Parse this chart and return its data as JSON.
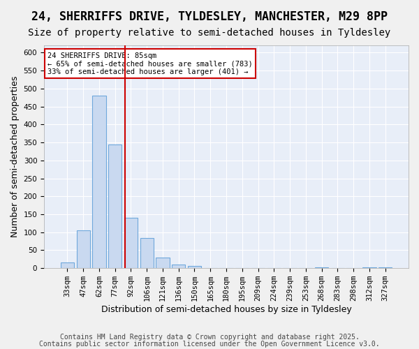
{
  "title1": "24, SHERRIFFS DRIVE, TYLDESLEY, MANCHESTER, M29 8PP",
  "title2": "Size of property relative to semi-detached houses in Tyldesley",
  "xlabel": "Distribution of semi-detached houses by size in Tyldesley",
  "ylabel": "Number of semi-detached properties",
  "categories": [
    "33sqm",
    "47sqm",
    "62sqm",
    "77sqm",
    "92sqm",
    "106sqm",
    "121sqm",
    "136sqm",
    "150sqm",
    "165sqm",
    "180sqm",
    "195sqm",
    "209sqm",
    "224sqm",
    "239sqm",
    "253sqm",
    "268sqm",
    "283sqm",
    "298sqm",
    "312sqm",
    "327sqm"
  ],
  "values": [
    15,
    105,
    480,
    345,
    140,
    83,
    30,
    11,
    6,
    1,
    0,
    0,
    0,
    0,
    0,
    0,
    2,
    0,
    0,
    2,
    3
  ],
  "bar_color": "#c9d9f0",
  "bar_edge_color": "#6fa8dc",
  "vline_x": 4,
  "vline_color": "#cc0000",
  "annotation_title": "24 SHERRIFFS DRIVE: 85sqm",
  "annotation_line1": "← 65% of semi-detached houses are smaller (783)",
  "annotation_line2": "33% of semi-detached houses are larger (401) →",
  "annotation_box_color": "#ffffff",
  "annotation_box_edge_color": "#cc0000",
  "ylim": [
    0,
    620
  ],
  "yticks": [
    0,
    50,
    100,
    150,
    200,
    250,
    300,
    350,
    400,
    450,
    500,
    550,
    600
  ],
  "background_color": "#e8eef8",
  "grid_color": "#ffffff",
  "footnote1": "Contains HM Land Registry data © Crown copyright and database right 2025.",
  "footnote2": "Contains public sector information licensed under the Open Government Licence v3.0.",
  "title1_fontsize": 12,
  "title2_fontsize": 10,
  "xlabel_fontsize": 9,
  "ylabel_fontsize": 9,
  "tick_fontsize": 7.5,
  "footnote_fontsize": 7
}
